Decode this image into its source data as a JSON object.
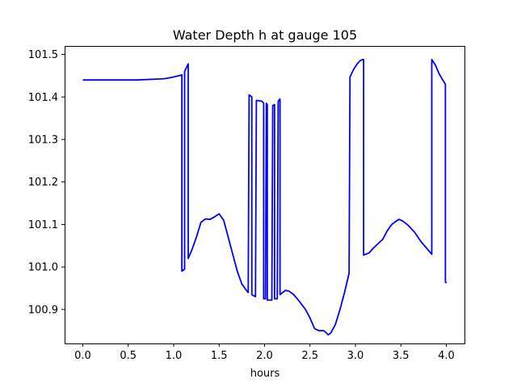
{
  "chart_data": {
    "type": "line",
    "title": "Water Depth h at gauge 105",
    "xlabel": "hours",
    "ylabel": "",
    "xlim": [
      -0.2,
      4.2
    ],
    "ylim": [
      100.82,
      101.52
    ],
    "x_ticks": [
      0.0,
      0.5,
      1.0,
      1.5,
      2.0,
      2.5,
      3.0,
      3.5,
      4.0
    ],
    "x_tick_labels": [
      "0.0",
      "0.5",
      "1.0",
      "1.5",
      "2.0",
      "2.5",
      "3.0",
      "3.5",
      "4.0"
    ],
    "y_ticks": [
      100.9,
      101.0,
      101.1,
      101.2,
      101.3,
      101.4,
      101.5
    ],
    "y_tick_labels": [
      "100.9",
      "101.0",
      "101.1",
      "101.2",
      "101.3",
      "101.4",
      "101.5"
    ],
    "grid": false,
    "series": [
      {
        "color": "#0000ff",
        "points": [
          [
            0.0,
            101.44
          ],
          [
            0.6,
            101.44
          ],
          [
            0.9,
            101.443
          ],
          [
            1.0,
            101.447
          ],
          [
            1.09,
            101.452
          ],
          [
            1.09,
            100.99
          ],
          [
            1.12,
            100.995
          ],
          [
            1.12,
            101.46
          ],
          [
            1.16,
            101.478
          ],
          [
            1.16,
            101.02
          ],
          [
            1.2,
            101.04
          ],
          [
            1.25,
            101.07
          ],
          [
            1.3,
            101.105
          ],
          [
            1.35,
            101.113
          ],
          [
            1.4,
            101.112
          ],
          [
            1.45,
            101.118
          ],
          [
            1.5,
            101.125
          ],
          [
            1.55,
            101.11
          ],
          [
            1.6,
            101.07
          ],
          [
            1.65,
            101.03
          ],
          [
            1.7,
            100.99
          ],
          [
            1.75,
            100.96
          ],
          [
            1.8,
            100.945
          ],
          [
            1.82,
            100.94
          ],
          [
            1.83,
            101.405
          ],
          [
            1.86,
            101.4
          ],
          [
            1.86,
            100.935
          ],
          [
            1.9,
            100.93
          ],
          [
            1.91,
            101.392
          ],
          [
            1.97,
            101.39
          ],
          [
            1.99,
            101.385
          ],
          [
            1.99,
            100.925
          ],
          [
            2.01,
            100.925
          ],
          [
            2.02,
            101.385
          ],
          [
            2.03,
            101.382
          ],
          [
            2.03,
            100.922
          ],
          [
            2.08,
            100.922
          ],
          [
            2.09,
            101.38
          ],
          [
            2.11,
            101.382
          ],
          [
            2.11,
            100.925
          ],
          [
            2.14,
            100.925
          ],
          [
            2.15,
            101.39
          ],
          [
            2.17,
            101.395
          ],
          [
            2.17,
            100.935
          ],
          [
            2.2,
            100.94
          ],
          [
            2.23,
            100.945
          ],
          [
            2.27,
            100.943
          ],
          [
            2.32,
            100.935
          ],
          [
            2.38,
            100.92
          ],
          [
            2.45,
            100.9
          ],
          [
            2.5,
            100.88
          ],
          [
            2.55,
            100.855
          ],
          [
            2.6,
            100.85
          ],
          [
            2.65,
            100.85
          ],
          [
            2.68,
            100.845
          ],
          [
            2.7,
            100.84
          ],
          [
            2.73,
            100.845
          ],
          [
            2.78,
            100.865
          ],
          [
            2.83,
            100.9
          ],
          [
            2.88,
            100.94
          ],
          [
            2.93,
            100.985
          ],
          [
            2.94,
            101.447
          ],
          [
            2.98,
            101.465
          ],
          [
            3.02,
            101.478
          ],
          [
            3.05,
            101.485
          ],
          [
            3.08,
            101.488
          ],
          [
            3.09,
            101.488
          ],
          [
            3.09,
            101.028
          ],
          [
            3.15,
            101.033
          ],
          [
            3.2,
            101.045
          ],
          [
            3.25,
            101.055
          ],
          [
            3.3,
            101.065
          ],
          [
            3.35,
            101.085
          ],
          [
            3.4,
            101.1
          ],
          [
            3.45,
            101.108
          ],
          [
            3.48,
            101.112
          ],
          [
            3.52,
            101.108
          ],
          [
            3.58,
            101.098
          ],
          [
            3.65,
            101.082
          ],
          [
            3.72,
            101.06
          ],
          [
            3.78,
            101.045
          ],
          [
            3.82,
            101.035
          ],
          [
            3.84,
            101.03
          ],
          [
            3.84,
            101.488
          ],
          [
            3.88,
            101.475
          ],
          [
            3.92,
            101.455
          ],
          [
            3.96,
            101.44
          ],
          [
            3.99,
            101.43
          ],
          [
            3.99,
            100.965
          ],
          [
            4.0,
            100.962
          ]
        ]
      }
    ]
  }
}
